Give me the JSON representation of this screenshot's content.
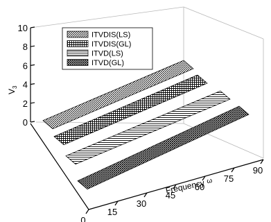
{
  "chart_data": {
    "type": "3d-surface",
    "projection": "oblique",
    "title": "",
    "xlabel": "Frequency",
    "xlabel_symbol": "ω",
    "ylabel": "V",
    "ylabel_subscript": "3",
    "xlim": [
      0,
      90
    ],
    "zlim": [
      0,
      10
    ],
    "x_ticks": [
      "0",
      "15",
      "30",
      "45",
      "60",
      "75",
      "90"
    ],
    "z_ticks": [
      "0",
      "2",
      "4",
      "6",
      "8",
      "10"
    ],
    "depth_categories": [
      "ITVD(GL)",
      "ITVD(LS)",
      "ITVDIS(GL)",
      "ITVDIS(LS)"
    ],
    "legend_position": "top-left-inside",
    "series": [
      {
        "name": "ITVDIS(LS)",
        "pattern": "diagonal-hatch",
        "x": [
          0,
          90
        ],
        "values": [
          0.1,
          0.3
        ]
      },
      {
        "name": "ITVDIS(GL)",
        "pattern": "grid-hatch",
        "x": [
          0,
          90
        ],
        "values": [
          0.1,
          0.3
        ]
      },
      {
        "name": "ITVD(LS)",
        "pattern": "horizontal-hatch",
        "x": [
          0,
          90
        ],
        "values": [
          0.1,
          0.3
        ]
      },
      {
        "name": "ITVD(GL)",
        "pattern": "crosshatch",
        "x": [
          0,
          90
        ],
        "values": [
          0.1,
          0.3
        ]
      }
    ]
  }
}
